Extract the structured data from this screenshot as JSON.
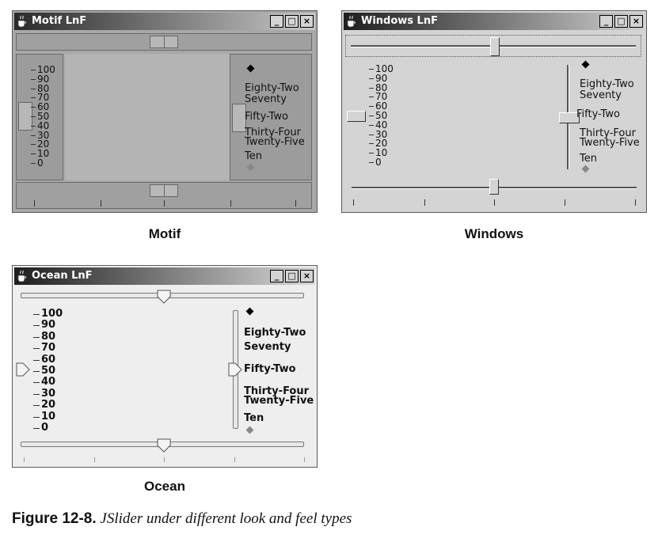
{
  "windows": {
    "motif": {
      "title": "Motif LnF",
      "caption": "Motif"
    },
    "windows": {
      "title": "Windows LnF",
      "caption": "Windows"
    },
    "ocean": {
      "title": "Ocean LnF",
      "caption": "Ocean"
    }
  },
  "title_buttons": {
    "minimize": "_",
    "maximize": "□",
    "close": "×"
  },
  "slider_values": {
    "top_horizontal": 50,
    "left_vertical": 50,
    "right_vertical": 52,
    "bottom_horizontal": 50,
    "min": 0,
    "max": 100
  },
  "left_scale_labels": [
    "100",
    "90",
    "80",
    "70",
    "60",
    "50",
    "40",
    "30",
    "20",
    "10",
    "0"
  ],
  "right_scale_labels": [
    "Eighty-Two",
    "Seventy",
    "Fifty-Two",
    "Thirty-Four",
    "Twenty-Five",
    "Ten"
  ],
  "figure": {
    "label": "Figure 12-8.",
    "text": "JSlider under different look and feel types"
  }
}
